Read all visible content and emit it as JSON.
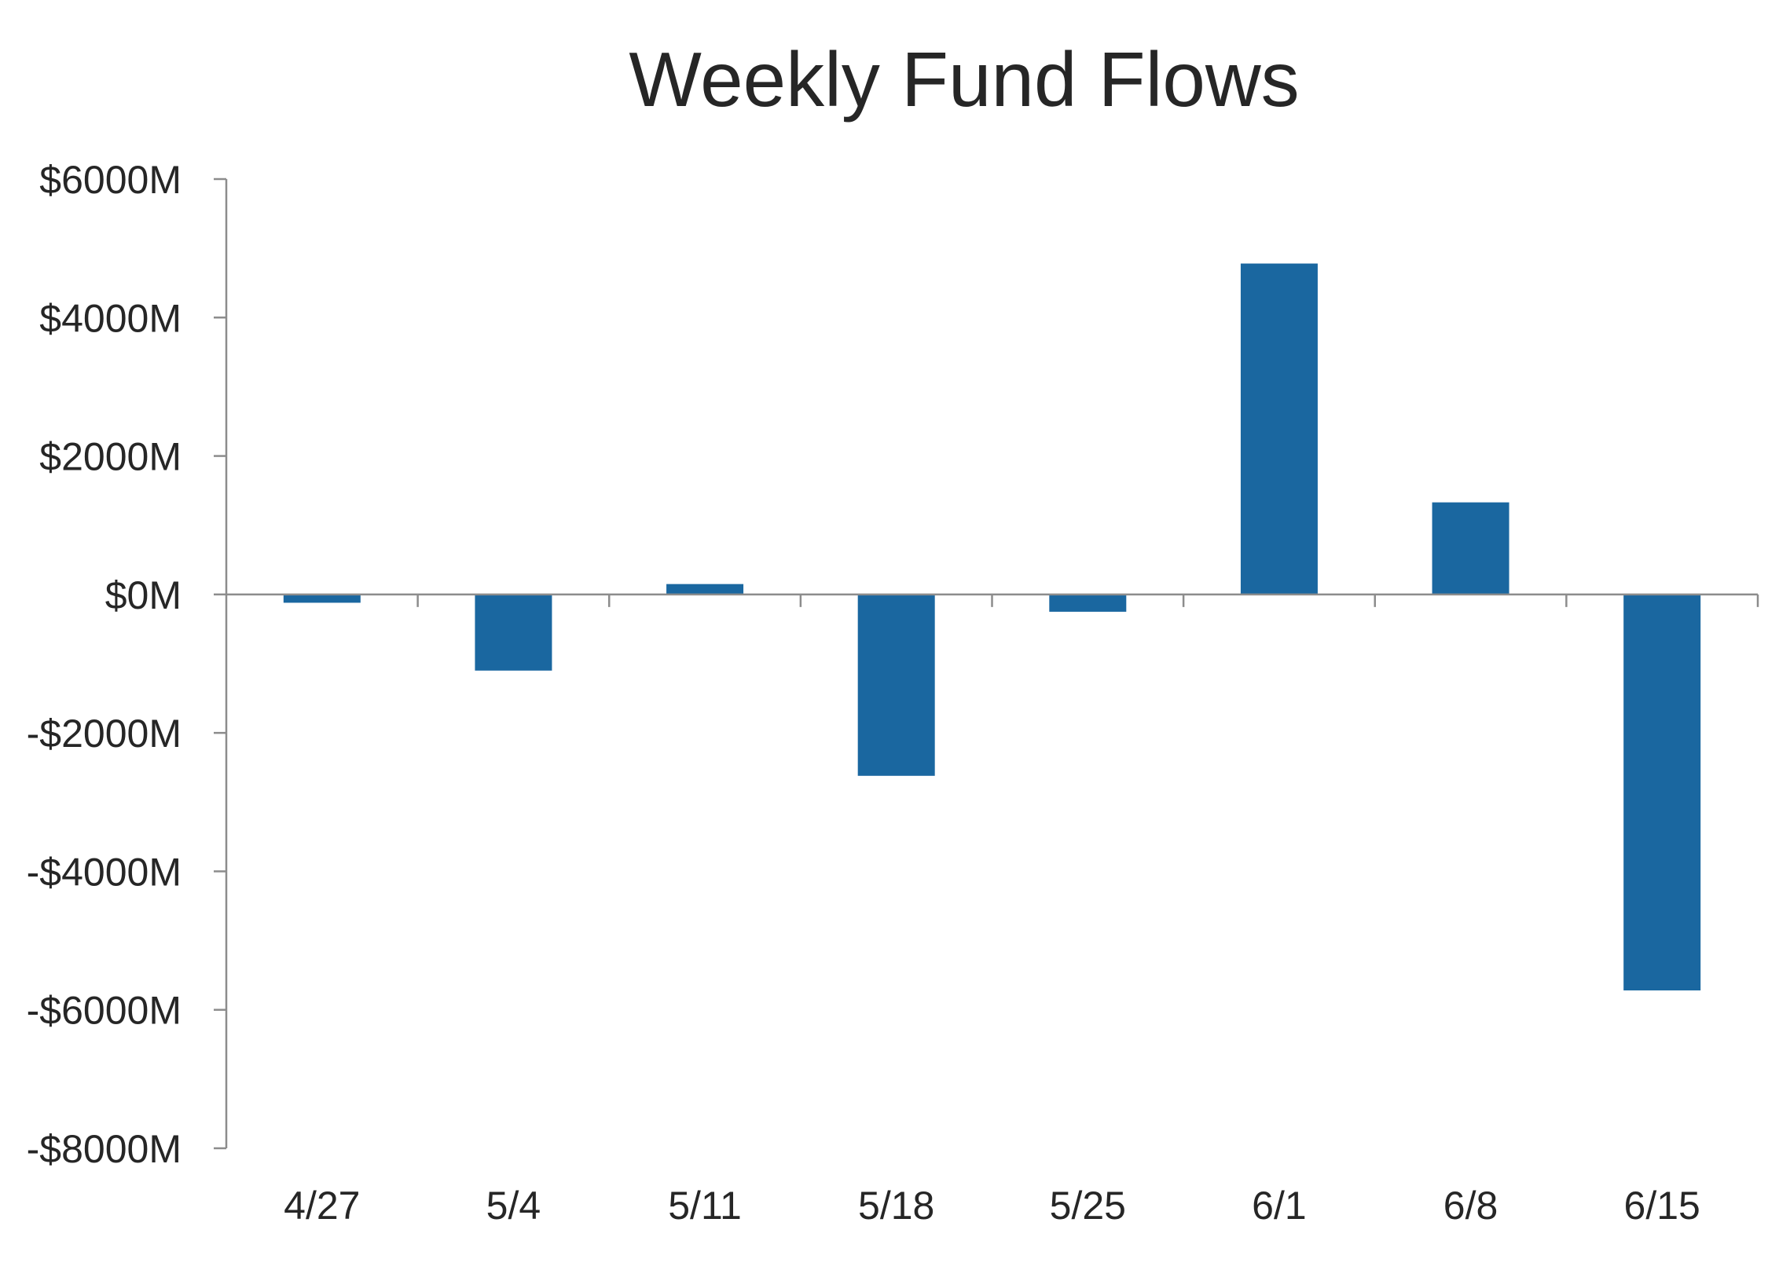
{
  "chart_data": {
    "type": "bar",
    "title": "Weekly Fund Flows",
    "xlabel": "",
    "ylabel": "",
    "categories": [
      "4/27",
      "5/4",
      "5/11",
      "5/18",
      "5/25",
      "6/1",
      "6/8",
      "6/15"
    ],
    "series": [
      {
        "values": [
          -120,
          -1100,
          150,
          -2620,
          -250,
          4780,
          1330,
          -5720
        ]
      }
    ],
    "y_ticks": [
      6000,
      4000,
      2000,
      0,
      -2000,
      -4000,
      -6000,
      -8000
    ],
    "y_tick_labels": [
      "$6000M",
      "$4000M",
      "$2000M",
      "$0M",
      "-$2000M",
      "-$4000M",
      "-$6000M",
      "-$8000M"
    ],
    "ylim": [
      -8000,
      6000
    ],
    "grid": false,
    "legend": "none",
    "colors": {
      "bar": "#1a67a0",
      "axis": "#8c8c8c",
      "text": "#262626"
    }
  }
}
